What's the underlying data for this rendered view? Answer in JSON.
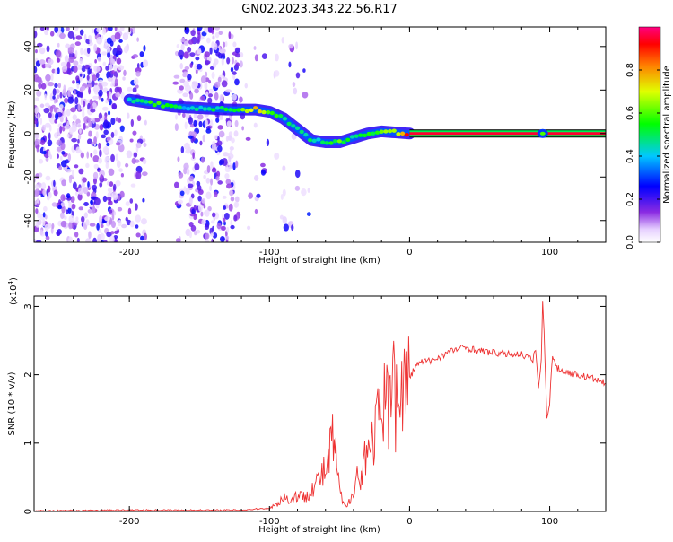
{
  "title": "GN02.2023.343.22.56.R17",
  "chart_data": [
    {
      "type": "heatmap",
      "xlabel": "Height of straight line (km)",
      "ylabel": "Frequency (Hz)",
      "xlim": [
        -268,
        140
      ],
      "ylim": [
        -50,
        49
      ],
      "x_ticks": [
        -200,
        -100,
        0,
        100
      ],
      "y_ticks": [
        -40,
        -20,
        0,
        20,
        40
      ],
      "colorbar": {
        "label": "Normalized spectral amplitude",
        "range": [
          0,
          1
        ],
        "ticks": [
          "0.0",
          "0.2",
          "0.4",
          "0.6",
          "0.8"
        ],
        "tick_values": [
          0,
          0.2,
          0.4,
          0.6,
          0.8
        ]
      },
      "ridge": [
        {
          "x": -200,
          "y": 15.5,
          "a": 0.45
        },
        {
          "x": -190,
          "y": 14.5,
          "a": 0.5
        },
        {
          "x": -180,
          "y": 13.5,
          "a": 0.55
        },
        {
          "x": -170,
          "y": 12.5,
          "a": 0.5
        },
        {
          "x": -160,
          "y": 12,
          "a": 0.4
        },
        {
          "x": -130,
          "y": 11,
          "a": 0.5
        },
        {
          "x": -120,
          "y": 11,
          "a": 0.6
        },
        {
          "x": -110,
          "y": 11,
          "a": 0.75
        },
        {
          "x": -100,
          "y": 10,
          "a": 0.6
        },
        {
          "x": -90,
          "y": 7,
          "a": 0.5
        },
        {
          "x": -80,
          "y": 2,
          "a": 0.45
        },
        {
          "x": -70,
          "y": -3,
          "a": 0.45
        },
        {
          "x": -60,
          "y": -4,
          "a": 0.5
        },
        {
          "x": -50,
          "y": -4,
          "a": 0.6
        },
        {
          "x": -40,
          "y": -2,
          "a": 0.5
        },
        {
          "x": -30,
          "y": 0,
          "a": 0.55
        },
        {
          "x": -20,
          "y": 1,
          "a": 0.6
        },
        {
          "x": -10,
          "y": 0.5,
          "a": 0.7
        },
        {
          "x": 0,
          "y": 0,
          "a": 0.9
        },
        {
          "x": 140,
          "y": 0,
          "a": 0.9
        }
      ]
    },
    {
      "type": "line",
      "xlabel": "Height of straight line (km)",
      "ylabel": "SNR (10 * v/v)",
      "scale_label": "(x10",
      "scale_exp": "4",
      "scale_close": ")",
      "xlim": [
        -268,
        140
      ],
      "ylim": [
        0,
        3.15
      ],
      "x_ticks": [
        -200,
        -100,
        0,
        100
      ],
      "y_ticks": [
        0,
        1,
        2,
        3
      ],
      "series": [
        {
          "color": "#ee3333",
          "x": [
            -268,
            -200,
            -150,
            -120,
            -100,
            -95,
            -90,
            -85,
            -80,
            -75,
            -70,
            -65,
            -60,
            -58,
            -55,
            -52,
            -50,
            -48,
            -45,
            -42,
            -40,
            -38,
            -35,
            -32,
            -30,
            -28,
            -25,
            -22,
            -20,
            -18,
            -15,
            -12,
            -10,
            -8,
            -5,
            -2,
            0,
            5,
            10,
            15,
            20,
            25,
            30,
            35,
            40,
            50,
            60,
            70,
            80,
            85,
            88,
            90,
            92,
            94,
            95,
            96,
            98,
            100,
            102,
            105,
            110,
            120,
            130,
            140
          ],
          "y": [
            0.01,
            0.02,
            0.02,
            0.02,
            0.05,
            0.1,
            0.22,
            0.15,
            0.25,
            0.2,
            0.35,
            0.45,
            0.6,
            0.7,
            1.1,
            0.7,
            0.3,
            0.15,
            0.05,
            0.2,
            0.35,
            0.6,
            0.35,
            0.9,
            1.05,
            0.8,
            1.2,
            1.35,
            1.1,
            1.6,
            1.5,
            2.7,
            1.55,
            1.6,
            1.8,
            1.9,
            1.95,
            2.15,
            2.2,
            2.2,
            2.25,
            2.3,
            2.35,
            2.38,
            2.4,
            2.35,
            2.32,
            2.3,
            2.3,
            2.25,
            2.2,
            2.4,
            1.8,
            2.2,
            3.1,
            2.6,
            1.4,
            1.6,
            2.3,
            2.1,
            2.05,
            2.0,
            1.95,
            1.87
          ]
        }
      ]
    }
  ]
}
